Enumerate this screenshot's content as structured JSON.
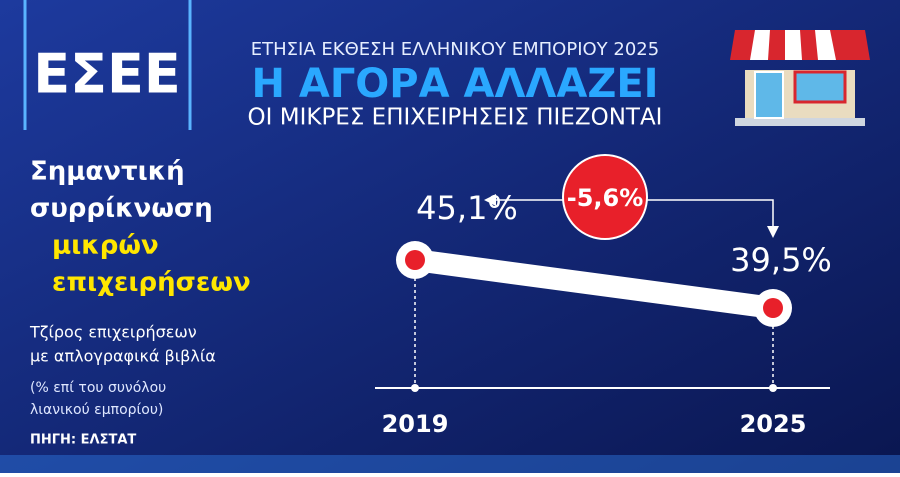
{
  "header": {
    "logo": "ΕΣΕΕ",
    "kicker": "ΕΤΗΣΙΑ ΕΚΘΕΣΗ ΕΛΛΗΝΙΚΟΥ ΕΜΠΟΡΙΟΥ 2025",
    "headline": "Η ΑΓΟΡΑ ΑΛΛΑΖΕΙ",
    "subheadline": "ΟΙ ΜΙΚΡΕΣ ΕΠΙΧΕΙΡΗΣΕΙΣ ΠΙΕΖΟΝΤΑΙ"
  },
  "chart_data": {
    "type": "line",
    "title": [
      "Σημαντική",
      "συρρίκνωση"
    ],
    "title_highlight": [
      "μικρών",
      "επιχειρήσεων"
    ],
    "subtitle": [
      "Τζίρος επιχειρήσεων",
      "με απλογραφικά βιβλία"
    ],
    "note": [
      "(% επί του συνόλου",
      "λιανικού εμπορίου)"
    ],
    "source": "ΠΗΓΗ: ΕΛΣΤΑΤ",
    "categories": [
      "2019",
      "2025"
    ],
    "values": [
      45.1,
      39.5
    ],
    "value_labels": [
      "45,1%",
      "39,5%"
    ],
    "annotation": "-5,6%",
    "color": "#e8202a"
  }
}
